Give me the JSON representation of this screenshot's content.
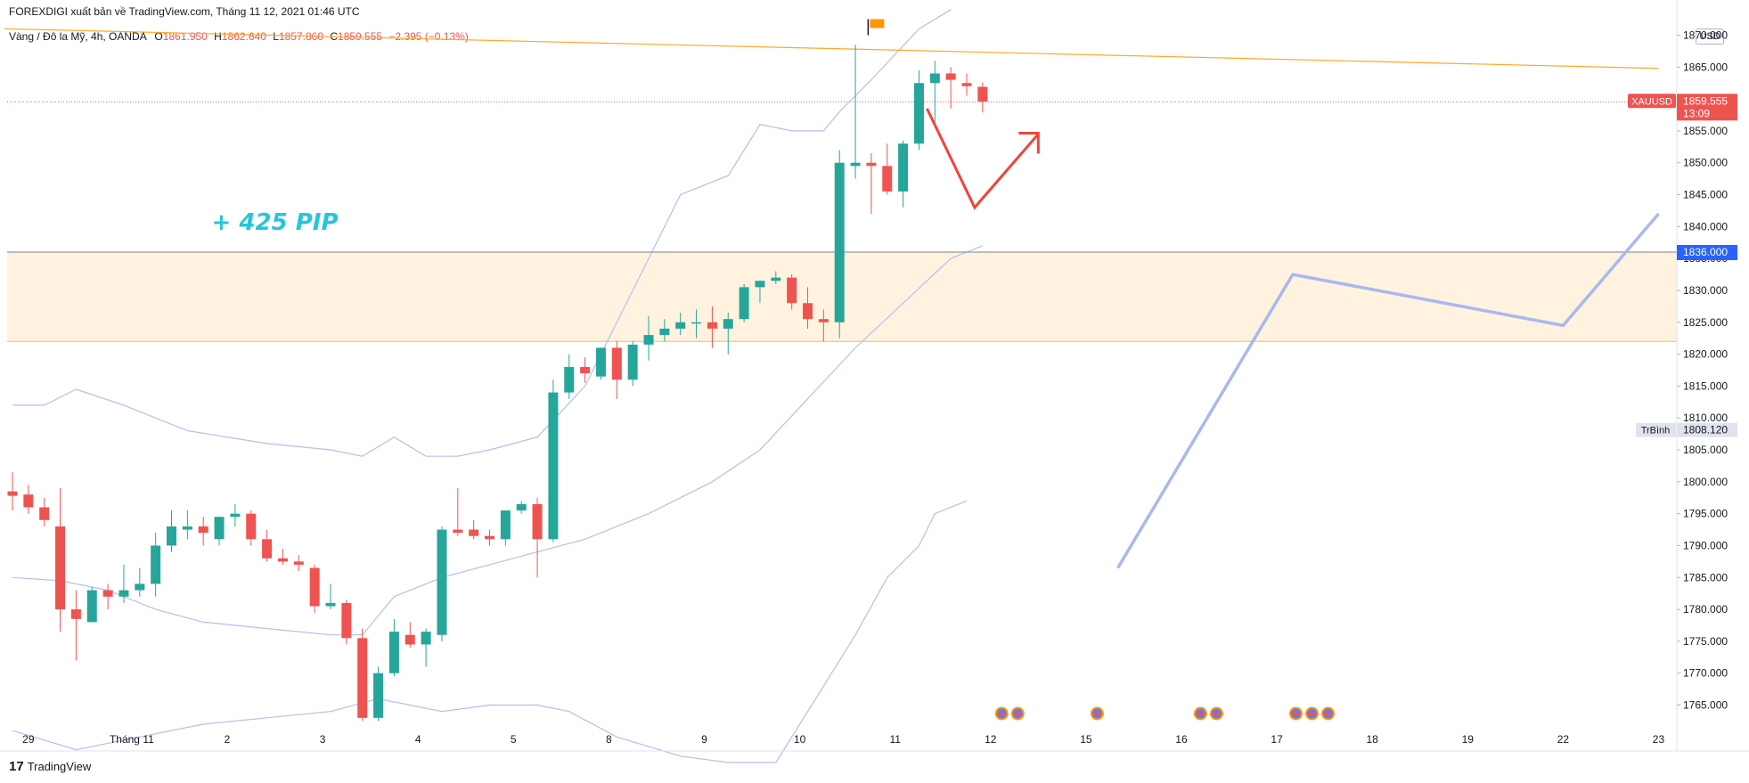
{
  "header": {
    "text": "FOREXDIGI xuất bản về TradingView.com, Tháng 11 12, 2021 01:46 UTC"
  },
  "symbol": {
    "name": "Vàng / Đô la Mỹ, 4h, OANDA",
    "open_label": "O",
    "open": "1861.950",
    "high_label": "H",
    "high": "1862.640",
    "low_label": "L",
    "low": "1857.860",
    "close_label": "C",
    "close": "1859.555",
    "change": "−2.395 (−0.13%)"
  },
  "currency": "USD",
  "footer": {
    "logo_text": "TradingView",
    "logo_icon": "tradingview-logo-icon"
  },
  "colors": {
    "up": "#26a69a",
    "down": "#ef5350",
    "bollinger": "#b4c0ec",
    "zone_fill": "#fff3e0",
    "zone_border": "#ffb74d",
    "trendline": "#ffa726",
    "projection": "#a9b8ef",
    "annotation": "#26c6da"
  },
  "chart_data": {
    "type": "candlestick",
    "title": "",
    "timeframe": "4h",
    "y_axis": {
      "ylim": [
        1762,
        1873
      ],
      "ticks": [
        "1765.000",
        "1770.000",
        "1775.000",
        "1780.000",
        "1785.000",
        "1790.000",
        "1795.000",
        "1800.000",
        "1805.000",
        "1810.000",
        "1815.000",
        "1820.000",
        "1825.000",
        "1830.000",
        "1835.000",
        "1840.000",
        "1845.000",
        "1850.000",
        "1855.000",
        "1860.000",
        "1865.000",
        "1870.000"
      ],
      "tick_values": [
        1765,
        1770,
        1775,
        1780,
        1785,
        1790,
        1795,
        1800,
        1805,
        1810,
        1815,
        1820,
        1825,
        1830,
        1835,
        1840,
        1845,
        1850,
        1855,
        1860,
        1865,
        1870
      ]
    },
    "x_axis": {
      "labels": [
        "29",
        "Tháng 11",
        "2",
        "3",
        "4",
        "5",
        "8",
        "9",
        "10",
        "11",
        "12",
        "15",
        "16",
        "17",
        "18",
        "19",
        "22",
        "23"
      ],
      "label_bar_index": [
        1,
        7.5,
        13.5,
        19.5,
        25.5,
        31.5,
        37.5,
        43.5,
        49.5,
        55.5,
        61.5,
        67.5,
        73.5,
        79.5,
        85.5,
        91.5,
        97.5,
        103.5
      ]
    },
    "candles": [
      {
        "o": 1798.5,
        "h": 1801.5,
        "l": 1795.5,
        "c": 1797.8
      },
      {
        "o": 1798.0,
        "h": 1799.5,
        "l": 1795.0,
        "c": 1796.0
      },
      {
        "o": 1796.0,
        "h": 1797.5,
        "l": 1793.0,
        "c": 1794.0
      },
      {
        "o": 1793.0,
        "h": 1799.0,
        "l": 1776.5,
        "c": 1780.0
      },
      {
        "o": 1780.0,
        "h": 1783.0,
        "l": 1772.0,
        "c": 1778.5
      },
      {
        "o": 1778.0,
        "h": 1783.5,
        "l": 1778.0,
        "c": 1783.0
      },
      {
        "o": 1783.0,
        "h": 1784.0,
        "l": 1780.0,
        "c": 1782.0
      },
      {
        "o": 1782.0,
        "h": 1787.0,
        "l": 1781.0,
        "c": 1783.0
      },
      {
        "o": 1783.0,
        "h": 1786.5,
        "l": 1782.0,
        "c": 1784.0
      },
      {
        "o": 1784.0,
        "h": 1792.0,
        "l": 1782.0,
        "c": 1790.0
      },
      {
        "o": 1790.0,
        "h": 1795.5,
        "l": 1789.0,
        "c": 1793.0
      },
      {
        "o": 1792.5,
        "h": 1795.5,
        "l": 1791.0,
        "c": 1793.0
      },
      {
        "o": 1793.0,
        "h": 1794.5,
        "l": 1790.0,
        "c": 1792.0
      },
      {
        "o": 1791.0,
        "h": 1794.5,
        "l": 1790.0,
        "c": 1794.5
      },
      {
        "o": 1794.5,
        "h": 1796.5,
        "l": 1793.0,
        "c": 1795.0
      },
      {
        "o": 1795.0,
        "h": 1795.5,
        "l": 1790.0,
        "c": 1791.0
      },
      {
        "o": 1791.0,
        "h": 1792.5,
        "l": 1787.5,
        "c": 1788.0
      },
      {
        "o": 1788.0,
        "h": 1789.5,
        "l": 1787.0,
        "c": 1787.5
      },
      {
        "o": 1787.5,
        "h": 1788.5,
        "l": 1786.0,
        "c": 1787.0
      },
      {
        "o": 1786.5,
        "h": 1787.0,
        "l": 1779.5,
        "c": 1780.5
      },
      {
        "o": 1780.5,
        "h": 1784.0,
        "l": 1780.0,
        "c": 1781.0
      },
      {
        "o": 1781.0,
        "h": 1781.5,
        "l": 1774.5,
        "c": 1775.5
      },
      {
        "o": 1775.5,
        "h": 1777.0,
        "l": 1762.5,
        "c": 1763.0
      },
      {
        "o": 1763.0,
        "h": 1771.0,
        "l": 1762.5,
        "c": 1770.0
      },
      {
        "o": 1770.0,
        "h": 1778.5,
        "l": 1769.5,
        "c": 1776.5
      },
      {
        "o": 1776.0,
        "h": 1778.0,
        "l": 1774.0,
        "c": 1774.5
      },
      {
        "o": 1774.5,
        "h": 1777.0,
        "l": 1771.0,
        "c": 1776.5
      },
      {
        "o": 1776.0,
        "h": 1793.0,
        "l": 1775.0,
        "c": 1792.5
      },
      {
        "o": 1792.5,
        "h": 1799.0,
        "l": 1791.5,
        "c": 1792.0
      },
      {
        "o": 1792.5,
        "h": 1794.0,
        "l": 1791.0,
        "c": 1791.5
      },
      {
        "o": 1791.5,
        "h": 1792.5,
        "l": 1790.0,
        "c": 1791.0
      },
      {
        "o": 1791.0,
        "h": 1795.5,
        "l": 1790.0,
        "c": 1795.5
      },
      {
        "o": 1795.5,
        "h": 1797.0,
        "l": 1795.0,
        "c": 1796.5
      },
      {
        "o": 1796.5,
        "h": 1797.5,
        "l": 1785.0,
        "c": 1791.0
      },
      {
        "o": 1791.0,
        "h": 1816.0,
        "l": 1790.5,
        "c": 1814.0
      },
      {
        "o": 1814.0,
        "h": 1820.0,
        "l": 1813.0,
        "c": 1818.0
      },
      {
        "o": 1818.0,
        "h": 1819.5,
        "l": 1815.5,
        "c": 1817.0
      },
      {
        "o": 1816.5,
        "h": 1821.0,
        "l": 1816.0,
        "c": 1821.0
      },
      {
        "o": 1821.0,
        "h": 1822.0,
        "l": 1813.0,
        "c": 1816.0
      },
      {
        "o": 1816.0,
        "h": 1822.0,
        "l": 1815.0,
        "c": 1821.5
      },
      {
        "o": 1821.5,
        "h": 1826.0,
        "l": 1819.0,
        "c": 1823.0
      },
      {
        "o": 1823.0,
        "h": 1825.5,
        "l": 1822.0,
        "c": 1824.0
      },
      {
        "o": 1824.0,
        "h": 1826.5,
        "l": 1823.0,
        "c": 1825.0
      },
      {
        "o": 1825.0,
        "h": 1827.0,
        "l": 1822.5,
        "c": 1825.0
      },
      {
        "o": 1825.0,
        "h": 1827.5,
        "l": 1821.0,
        "c": 1824.0
      },
      {
        "o": 1824.0,
        "h": 1826.5,
        "l": 1820.0,
        "c": 1825.5
      },
      {
        "o": 1825.5,
        "h": 1831.0,
        "l": 1825.0,
        "c": 1830.5
      },
      {
        "o": 1830.5,
        "h": 1831.5,
        "l": 1828.0,
        "c": 1831.5
      },
      {
        "o": 1831.5,
        "h": 1833.0,
        "l": 1831.0,
        "c": 1832.0
      },
      {
        "o": 1832.0,
        "h": 1832.5,
        "l": 1827.0,
        "c": 1828.0
      },
      {
        "o": 1828.0,
        "h": 1830.5,
        "l": 1824.0,
        "c": 1825.5
      },
      {
        "o": 1825.5,
        "h": 1827.0,
        "l": 1822.0,
        "c": 1825.0
      },
      {
        "o": 1825.0,
        "h": 1852.0,
        "l": 1822.5,
        "c": 1850.0
      },
      {
        "o": 1849.5,
        "h": 1868.5,
        "l": 1847.5,
        "c": 1850.0
      },
      {
        "o": 1850.0,
        "h": 1851.5,
        "l": 1842.0,
        "c": 1849.5
      },
      {
        "o": 1849.5,
        "h": 1853.0,
        "l": 1845.0,
        "c": 1845.5
      },
      {
        "o": 1845.5,
        "h": 1853.5,
        "l": 1843.0,
        "c": 1853.0
      },
      {
        "o": 1853.0,
        "h": 1864.5,
        "l": 1852.0,
        "c": 1862.5
      },
      {
        "o": 1862.5,
        "h": 1866.0,
        "l": 1856.0,
        "c": 1864.0
      },
      {
        "o": 1864.0,
        "h": 1865.0,
        "l": 1858.5,
        "c": 1863.0
      },
      {
        "o": 1862.5,
        "h": 1864.0,
        "l": 1860.5,
        "c": 1862.0
      },
      {
        "o": 1861.9,
        "h": 1862.6,
        "l": 1857.9,
        "c": 1859.6
      }
    ],
    "bollinger": {
      "upper": [
        [
          0,
          1812
        ],
        [
          2,
          1812
        ],
        [
          4,
          1814.5
        ],
        [
          7,
          1812
        ],
        [
          11,
          1808
        ],
        [
          16,
          1806
        ],
        [
          20,
          1805
        ],
        [
          22,
          1804
        ],
        [
          24,
          1807
        ],
        [
          26,
          1804
        ],
        [
          28,
          1804
        ],
        [
          30,
          1805
        ],
        [
          33,
          1807
        ],
        [
          36,
          1815
        ],
        [
          39,
          1830
        ],
        [
          42,
          1845
        ],
        [
          45,
          1848
        ],
        [
          47,
          1856
        ],
        [
          49,
          1855
        ],
        [
          51,
          1855
        ],
        [
          52,
          1858
        ],
        [
          54,
          1863
        ],
        [
          57,
          1871
        ],
        [
          59,
          1874
        ]
      ],
      "middle": [
        [
          0,
          1785
        ],
        [
          3,
          1784.5
        ],
        [
          6,
          1783
        ],
        [
          9,
          1780
        ],
        [
          12,
          1778
        ],
        [
          16,
          1777
        ],
        [
          20,
          1776
        ],
        [
          22,
          1776
        ],
        [
          24,
          1782
        ],
        [
          27,
          1785
        ],
        [
          30,
          1787
        ],
        [
          33,
          1789
        ],
        [
          36,
          1791
        ],
        [
          40,
          1795
        ],
        [
          44,
          1800
        ],
        [
          47,
          1805
        ],
        [
          50,
          1813
        ],
        [
          53,
          1821
        ],
        [
          56,
          1828
        ],
        [
          59,
          1835
        ],
        [
          61,
          1837
        ]
      ],
      "lower": [
        [
          0,
          1761
        ],
        [
          4,
          1758
        ],
        [
          8,
          1760
        ],
        [
          12,
          1762
        ],
        [
          16,
          1763
        ],
        [
          20,
          1764
        ],
        [
          23,
          1766
        ],
        [
          27,
          1764
        ],
        [
          30,
          1765
        ],
        [
          33,
          1765
        ],
        [
          35,
          1764
        ],
        [
          38,
          1760
        ],
        [
          42,
          1757
        ],
        [
          45,
          1756
        ],
        [
          48,
          1756
        ],
        [
          50,
          1764
        ],
        [
          51,
          1768
        ],
        [
          53,
          1776
        ],
        [
          55,
          1785
        ],
        [
          57,
          1790
        ],
        [
          58,
          1795
        ],
        [
          60,
          1797
        ]
      ]
    },
    "price_labels": [
      {
        "name": "XAUUSD",
        "value": "1859.555",
        "countdown": "13:09",
        "color": "#ef5350"
      },
      {
        "name": "",
        "value": "1836.000",
        "color": "#2962ff"
      },
      {
        "name": "TrBình",
        "value": "1808.120",
        "color": "#e0e3eb"
      }
    ],
    "horizontal_level": 1836.0,
    "zone": {
      "top": 1836.0,
      "bottom": 1822.0
    },
    "trendline": [
      [
        -0.5,
        1871.0
      ],
      [
        103.5,
        1864.8
      ]
    ],
    "current_price_line": 1859.555,
    "annotation": {
      "text": "+ 425 PIP",
      "bar": 16.5,
      "price": 1839.5
    },
    "red_projection": [
      [
        57.5,
        1858.5
      ],
      [
        60.5,
        1843.0
      ],
      [
        64.5,
        1854.5
      ]
    ],
    "blue_projection": [
      [
        69.5,
        1786.5
      ],
      [
        80.5,
        1832.5
      ],
      [
        97.5,
        1824.5
      ],
      [
        103.5,
        1842.0
      ]
    ],
    "flag": {
      "bar": 53.8,
      "price": 1870.0
    },
    "events": [
      {
        "bar": 62.2,
        "count": 2
      },
      {
        "bar": 68.2,
        "count": 1
      },
      {
        "bar": 74.7,
        "count": 2
      },
      {
        "bar": 80.7,
        "count": 3
      }
    ]
  }
}
